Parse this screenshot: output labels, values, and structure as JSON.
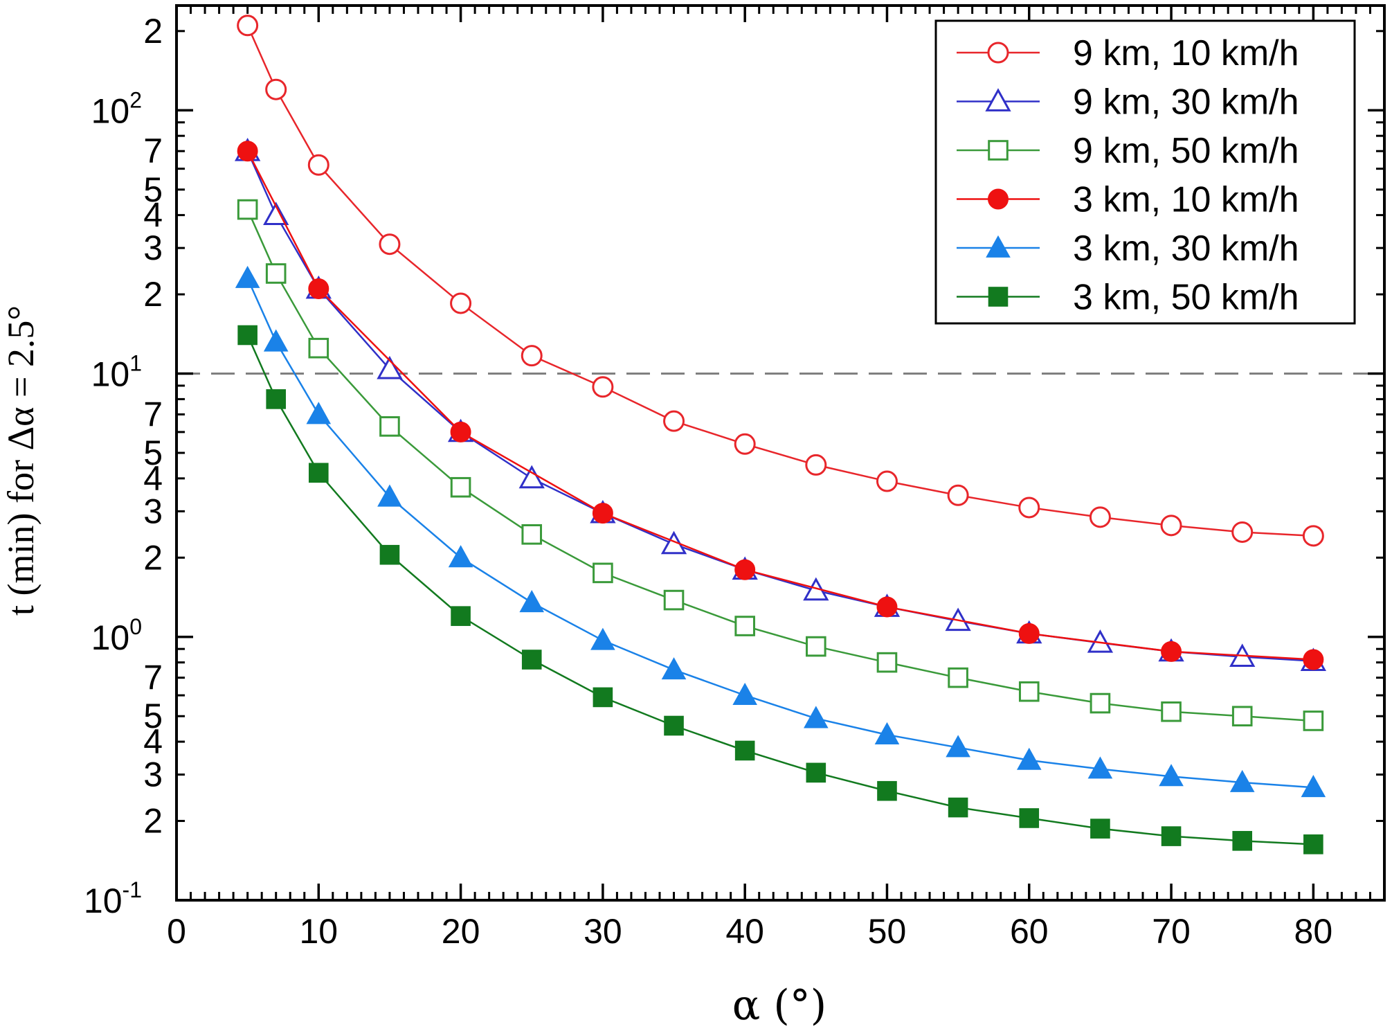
{
  "chart_data": {
    "type": "line",
    "title": "",
    "xlabel": "α (°)",
    "ylabel": "t (min) for Δα = 2.5°",
    "xlim": [
      0,
      85
    ],
    "ylim": [
      0.1,
      250
    ],
    "yscale": "log",
    "x_ticks": [
      0,
      10,
      20,
      30,
      40,
      50,
      60,
      70,
      80
    ],
    "y_decades": [
      {
        "value": 0.1,
        "label": "10",
        "exp": "-1"
      },
      {
        "value": 1,
        "label": "10",
        "exp": "0"
      },
      {
        "value": 10,
        "label": "10",
        "exp": "1"
      },
      {
        "value": 100,
        "label": "10",
        "exp": "2"
      }
    ],
    "y_minor_labels": [
      "2",
      "3",
      "4",
      "5",
      "7"
    ],
    "reference_line": {
      "y": 10,
      "style": "dashed",
      "color": "#7f7f7f"
    },
    "legend_position": "top-right",
    "series": [
      {
        "name": "9 km, 10 km/h",
        "color": "#e8262b",
        "marker": "circle",
        "filled": false,
        "x": [
          5,
          7,
          10,
          15,
          20,
          25,
          30,
          35,
          40,
          45,
          50,
          55,
          60,
          65,
          70,
          75,
          80
        ],
        "y": [
          210,
          120,
          62,
          31,
          18.5,
          11.7,
          8.9,
          6.6,
          5.4,
          4.5,
          3.9,
          3.45,
          3.1,
          2.85,
          2.65,
          2.5,
          2.42
        ]
      },
      {
        "name": "9 km, 30 km/h",
        "color": "#3030c8",
        "marker": "triangle",
        "filled": false,
        "x": [
          5,
          7,
          10,
          15,
          20,
          25,
          30,
          35,
          40,
          45,
          50,
          55,
          60,
          65,
          70,
          75,
          80
        ],
        "y": [
          70,
          40,
          21,
          10.4,
          6.0,
          4.0,
          2.95,
          2.25,
          1.8,
          1.5,
          1.3,
          1.15,
          1.03,
          0.95,
          0.88,
          0.84,
          0.81
        ]
      },
      {
        "name": "9 km, 50 km/h",
        "color": "#3a9a3a",
        "marker": "square",
        "filled": false,
        "x": [
          5,
          7,
          10,
          15,
          20,
          25,
          30,
          35,
          40,
          45,
          50,
          55,
          60,
          65,
          70,
          75,
          80
        ],
        "y": [
          42,
          24,
          12.5,
          6.3,
          3.7,
          2.45,
          1.75,
          1.38,
          1.1,
          0.92,
          0.8,
          0.7,
          0.62,
          0.56,
          0.52,
          0.5,
          0.48
        ]
      },
      {
        "name": "3 km, 10 km/h",
        "color": "#ee1111",
        "marker": "circle",
        "filled": true,
        "x": [
          5,
          10,
          20,
          30,
          40,
          50,
          60,
          70,
          80
        ],
        "y": [
          70,
          21,
          6.0,
          2.95,
          1.8,
          1.3,
          1.03,
          0.88,
          0.82
        ]
      },
      {
        "name": "3 km, 30 km/h",
        "color": "#1a82e8",
        "marker": "triangle",
        "filled": true,
        "x": [
          5,
          7,
          10,
          15,
          20,
          25,
          30,
          35,
          40,
          45,
          50,
          55,
          60,
          65,
          70,
          75,
          80
        ],
        "y": [
          23,
          13.2,
          7.0,
          3.4,
          2.0,
          1.35,
          0.97,
          0.75,
          0.6,
          0.49,
          0.425,
          0.38,
          0.34,
          0.315,
          0.295,
          0.28,
          0.268
        ]
      },
      {
        "name": "3 km, 50 km/h",
        "color": "#127a1f",
        "marker": "square",
        "filled": true,
        "x": [
          5,
          7,
          10,
          15,
          20,
          25,
          30,
          35,
          40,
          45,
          50,
          55,
          60,
          65,
          70,
          75,
          80
        ],
        "y": [
          14,
          8.0,
          4.2,
          2.05,
          1.2,
          0.82,
          0.59,
          0.46,
          0.37,
          0.305,
          0.26,
          0.225,
          0.205,
          0.187,
          0.175,
          0.168,
          0.163
        ]
      }
    ]
  }
}
